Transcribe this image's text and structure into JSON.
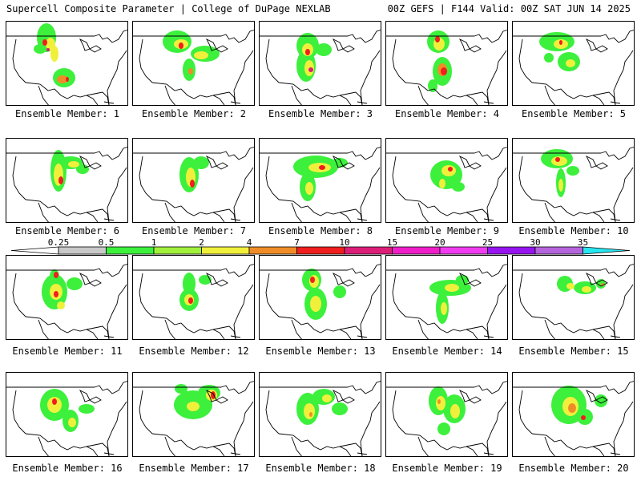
{
  "header": {
    "left": "Supercell Composite Parameter | College of DuPage NEXLAB",
    "right": "00Z GEFS | F144 Valid: 00Z SAT JUN 14 2025"
  },
  "panels": [
    {
      "label": "Ensemble Member: 1",
      "blobs": [
        [
          50,
          20,
          12,
          18,
          1
        ],
        [
          72,
          70,
          14,
          12,
          1
        ],
        [
          42,
          34,
          8,
          6,
          1
        ],
        [
          55,
          28,
          6,
          8,
          2
        ],
        [
          60,
          40,
          5,
          10,
          2
        ],
        [
          70,
          72,
          7,
          5,
          3
        ],
        [
          48,
          26,
          3,
          4,
          4
        ],
        [
          76,
          72,
          2,
          3,
          4
        ],
        [
          52,
          35,
          2,
          2,
          5
        ]
      ]
    },
    {
      "label": "Ensemble Member: 2",
      "blobs": [
        [
          55,
          25,
          18,
          14,
          1
        ],
        [
          90,
          40,
          18,
          10,
          1
        ],
        [
          70,
          60,
          8,
          14,
          1
        ],
        [
          60,
          28,
          9,
          6,
          2
        ],
        [
          85,
          42,
          9,
          5,
          2
        ],
        [
          60,
          30,
          3,
          4,
          4
        ],
        [
          72,
          62,
          3,
          4,
          3
        ]
      ]
    },
    {
      "label": "Ensemble Member: 3",
      "blobs": [
        [
          60,
          30,
          14,
          16,
          1
        ],
        [
          80,
          35,
          10,
          8,
          1
        ],
        [
          58,
          55,
          12,
          20,
          1
        ],
        [
          60,
          35,
          7,
          8,
          2
        ],
        [
          62,
          58,
          6,
          10,
          2
        ],
        [
          60,
          38,
          3,
          4,
          4
        ],
        [
          64,
          60,
          3,
          3,
          5
        ]
      ]
    },
    {
      "label": "Ensemble Member: 4",
      "blobs": [
        [
          65,
          25,
          14,
          14,
          1
        ],
        [
          70,
          62,
          12,
          18,
          1
        ],
        [
          58,
          80,
          6,
          8,
          1
        ],
        [
          66,
          28,
          7,
          8,
          2
        ],
        [
          70,
          60,
          6,
          8,
          3
        ],
        [
          72,
          62,
          4,
          5,
          4
        ],
        [
          64,
          22,
          3,
          4,
          4
        ]
      ]
    },
    {
      "label": "Ensemble Member: 5",
      "blobs": [
        [
          55,
          25,
          22,
          12,
          1
        ],
        [
          70,
          50,
          14,
          12,
          1
        ],
        [
          45,
          45,
          6,
          6,
          1
        ],
        [
          60,
          28,
          9,
          6,
          2
        ],
        [
          72,
          52,
          6,
          5,
          2
        ],
        [
          60,
          26,
          2,
          3,
          4
        ]
      ]
    },
    {
      "label": "Ensemble Member: 6",
      "blobs": [
        [
          65,
          40,
          10,
          26,
          1
        ],
        [
          80,
          30,
          16,
          8,
          1
        ],
        [
          95,
          38,
          8,
          6,
          1
        ],
        [
          65,
          45,
          6,
          14,
          2
        ],
        [
          84,
          32,
          7,
          4,
          2
        ],
        [
          68,
          52,
          3,
          5,
          4
        ]
      ]
    },
    {
      "label": "Ensemble Member: 7",
      "blobs": [
        [
          70,
          45,
          12,
          22,
          1
        ],
        [
          85,
          30,
          10,
          8,
          1
        ],
        [
          72,
          48,
          6,
          12,
          2
        ],
        [
          74,
          56,
          3,
          5,
          4
        ]
      ]
    },
    {
      "label": "Ensemble Member: 8",
      "blobs": [
        [
          70,
          35,
          28,
          14,
          1
        ],
        [
          60,
          60,
          10,
          18,
          1
        ],
        [
          100,
          30,
          10,
          6,
          1
        ],
        [
          75,
          36,
          14,
          6,
          2
        ],
        [
          62,
          62,
          5,
          8,
          2
        ],
        [
          78,
          36,
          4,
          3,
          4
        ]
      ]
    },
    {
      "label": "Ensemble Member: 9",
      "blobs": [
        [
          75,
          45,
          20,
          18,
          1
        ],
        [
          90,
          60,
          8,
          6,
          1
        ],
        [
          78,
          40,
          9,
          7,
          2
        ],
        [
          70,
          56,
          4,
          6,
          2
        ],
        [
          80,
          38,
          3,
          3,
          4
        ]
      ]
    },
    {
      "label": "Ensemble Member: 10",
      "blobs": [
        [
          55,
          25,
          20,
          12,
          1
        ],
        [
          60,
          55,
          6,
          18,
          1
        ],
        [
          75,
          40,
          8,
          6,
          1
        ],
        [
          58,
          28,
          10,
          6,
          2
        ],
        [
          60,
          58,
          3,
          8,
          2
        ],
        [
          56,
          26,
          3,
          3,
          4
        ]
      ]
    },
    {
      "label": "Ensemble Member: 11",
      "blobs": [
        [
          60,
          45,
          16,
          22,
          1
        ],
        [
          85,
          35,
          10,
          8,
          1
        ],
        [
          60,
          25,
          6,
          8,
          1
        ],
        [
          62,
          45,
          8,
          10,
          2
        ],
        [
          68,
          62,
          5,
          5,
          2
        ],
        [
          62,
          24,
          3,
          4,
          4
        ],
        [
          62,
          48,
          3,
          4,
          4
        ]
      ]
    },
    {
      "label": "Ensemble Member: 12",
      "blobs": [
        [
          70,
          35,
          8,
          14,
          1
        ],
        [
          70,
          55,
          12,
          14,
          1
        ],
        [
          90,
          30,
          8,
          6,
          1
        ],
        [
          70,
          55,
          6,
          7,
          2
        ],
        [
          72,
          56,
          3,
          4,
          4
        ]
      ]
    },
    {
      "label": "Ensemble Member: 13",
      "blobs": [
        [
          65,
          30,
          12,
          14,
          1
        ],
        [
          70,
          60,
          14,
          20,
          1
        ],
        [
          100,
          45,
          8,
          8,
          1
        ],
        [
          68,
          32,
          6,
          8,
          2
        ],
        [
          70,
          60,
          7,
          10,
          2
        ],
        [
          66,
          30,
          3,
          4,
          4
        ]
      ]
    },
    {
      "label": "Ensemble Member: 14",
      "blobs": [
        [
          80,
          40,
          26,
          10,
          1
        ],
        [
          70,
          65,
          8,
          20,
          1
        ],
        [
          95,
          30,
          8,
          6,
          1
        ],
        [
          82,
          40,
          9,
          5,
          2
        ],
        [
          72,
          66,
          4,
          8,
          2
        ]
      ]
    },
    {
      "label": "Ensemble Member: 15",
      "blobs": [
        [
          65,
          35,
          10,
          10,
          1
        ],
        [
          90,
          40,
          14,
          8,
          1
        ],
        [
          110,
          35,
          6,
          6,
          1
        ],
        [
          72,
          38,
          5,
          4,
          2
        ],
        [
          92,
          42,
          6,
          4,
          2
        ],
        [
          112,
          36,
          2,
          2,
          3
        ]
      ]
    },
    {
      "label": "Ensemble Member: 16",
      "blobs": [
        [
          60,
          40,
          18,
          20,
          1
        ],
        [
          80,
          60,
          10,
          14,
          1
        ],
        [
          100,
          45,
          10,
          6,
          1
        ],
        [
          60,
          40,
          9,
          10,
          2
        ],
        [
          82,
          62,
          5,
          6,
          2
        ],
        [
          60,
          36,
          3,
          4,
          4
        ]
      ]
    },
    {
      "label": "Ensemble Member: 17",
      "blobs": [
        [
          75,
          40,
          24,
          18,
          1
        ],
        [
          95,
          25,
          14,
          10,
          1
        ],
        [
          60,
          20,
          8,
          6,
          1
        ],
        [
          98,
          28,
          7,
          7,
          2
        ],
        [
          75,
          42,
          8,
          6,
          2
        ],
        [
          100,
          28,
          3,
          5,
          4
        ]
      ]
    },
    {
      "label": "Ensemble Member: 18",
      "blobs": [
        [
          60,
          45,
          14,
          20,
          1
        ],
        [
          80,
          30,
          14,
          10,
          1
        ],
        [
          100,
          45,
          10,
          8,
          1
        ],
        [
          62,
          48,
          7,
          10,
          2
        ],
        [
          84,
          32,
          6,
          5,
          2
        ],
        [
          64,
          52,
          2,
          3,
          3
        ]
      ]
    },
    {
      "label": "Ensemble Member: 19",
      "blobs": [
        [
          65,
          35,
          12,
          18,
          1
        ],
        [
          85,
          45,
          14,
          18,
          1
        ],
        [
          72,
          70,
          8,
          8,
          1
        ],
        [
          68,
          38,
          6,
          9,
          2
        ],
        [
          86,
          48,
          6,
          9,
          2
        ],
        [
          66,
          36,
          2,
          3,
          3
        ]
      ]
    },
    {
      "label": "Ensemble Member: 20",
      "blobs": [
        [
          70,
          40,
          22,
          24,
          1
        ],
        [
          90,
          55,
          10,
          10,
          1
        ],
        [
          110,
          35,
          8,
          8,
          1
        ],
        [
          72,
          42,
          10,
          12,
          2
        ],
        [
          74,
          44,
          5,
          6,
          3
        ],
        [
          88,
          56,
          3,
          3,
          4
        ]
      ]
    }
  ],
  "colorbar": {
    "labels": [
      "0.25",
      "0.5",
      "1",
      "2",
      "4",
      "7",
      "10",
      "15",
      "20",
      "25",
      "30",
      "35"
    ],
    "colors": [
      "#c8c8c8",
      "#3cf03c",
      "#a0f03c",
      "#f0f03c",
      "#f08c28",
      "#f01e1e",
      "#dc1e78",
      "#f01ec8",
      "#f03cf0",
      "#9614f0",
      "#b464dc",
      "#28e6f0"
    ]
  },
  "map_colors": {
    "background": "#ffffff",
    "outline": "#000000",
    "field_levels": [
      "#c8c8c8",
      "#3cf03c",
      "#f0f03c",
      "#f08c28",
      "#f01e1e",
      "#dc1e78"
    ]
  }
}
